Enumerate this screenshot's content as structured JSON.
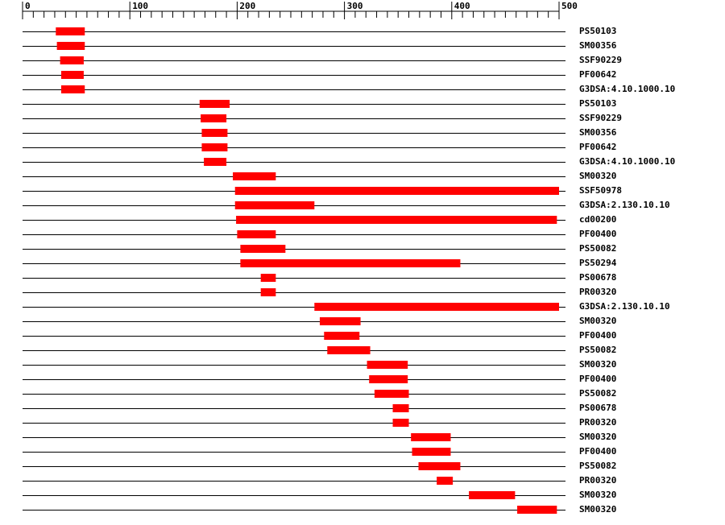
{
  "chart_data": {
    "type": "range",
    "xlim": [
      0,
      500
    ],
    "xticks": [
      0,
      100,
      200,
      300,
      400,
      500
    ],
    "xminorticks": [
      10,
      20,
      30,
      40,
      50,
      60,
      70,
      80,
      90,
      110,
      120,
      130,
      140,
      150,
      160,
      170,
      180,
      190,
      210,
      220,
      230,
      240,
      250,
      260,
      270,
      280,
      290,
      310,
      320,
      330,
      340,
      350,
      360,
      370,
      380,
      390,
      410,
      420,
      430,
      440,
      450,
      460,
      470,
      480,
      490
    ],
    "color": "#ff0000",
    "rows": [
      {
        "label": "PS50103",
        "start": 31,
        "end": 58
      },
      {
        "label": "SM00356",
        "start": 32,
        "end": 58
      },
      {
        "label": "SSF90229",
        "start": 35,
        "end": 57
      },
      {
        "label": "PF00642",
        "start": 36,
        "end": 57
      },
      {
        "label": "G3DSA:4.10.1000.10",
        "start": 36,
        "end": 58
      },
      {
        "label": "PS50103",
        "start": 165,
        "end": 193
      },
      {
        "label": "SSF90229",
        "start": 166,
        "end": 190
      },
      {
        "label": "SM00356",
        "start": 167,
        "end": 191
      },
      {
        "label": "PF00642",
        "start": 167,
        "end": 191
      },
      {
        "label": "G3DSA:4.10.1000.10",
        "start": 169,
        "end": 190
      },
      {
        "label": "SM00320",
        "start": 196,
        "end": 236
      },
      {
        "label": "SSF50978",
        "start": 198,
        "end": 500
      },
      {
        "label": "G3DSA:2.130.10.10",
        "start": 198,
        "end": 272
      },
      {
        "label": "cd00200",
        "start": 199,
        "end": 498
      },
      {
        "label": "PF00400",
        "start": 200,
        "end": 236
      },
      {
        "label": "PS50082",
        "start": 203,
        "end": 245
      },
      {
        "label": "PS50294",
        "start": 203,
        "end": 408
      },
      {
        "label": "PS00678",
        "start": 222,
        "end": 236
      },
      {
        "label": "PR00320",
        "start": 222,
        "end": 236
      },
      {
        "label": "G3DSA:2.130.10.10",
        "start": 272,
        "end": 500
      },
      {
        "label": "SM00320",
        "start": 277,
        "end": 315
      },
      {
        "label": "PF00400",
        "start": 281,
        "end": 314
      },
      {
        "label": "PS50082",
        "start": 284,
        "end": 324
      },
      {
        "label": "SM00320",
        "start": 321,
        "end": 359
      },
      {
        "label": "PF00400",
        "start": 323,
        "end": 359
      },
      {
        "label": "PS50082",
        "start": 328,
        "end": 360
      },
      {
        "label": "PS00678",
        "start": 345,
        "end": 360
      },
      {
        "label": "PR00320",
        "start": 345,
        "end": 360
      },
      {
        "label": "SM00320",
        "start": 362,
        "end": 399
      },
      {
        "label": "PF00400",
        "start": 363,
        "end": 399
      },
      {
        "label": "PS50082",
        "start": 369,
        "end": 408
      },
      {
        "label": "PR00320",
        "start": 386,
        "end": 401
      },
      {
        "label": "SM00320",
        "start": 416,
        "end": 459
      },
      {
        "label": "SM00320",
        "start": 461,
        "end": 498
      }
    ]
  }
}
